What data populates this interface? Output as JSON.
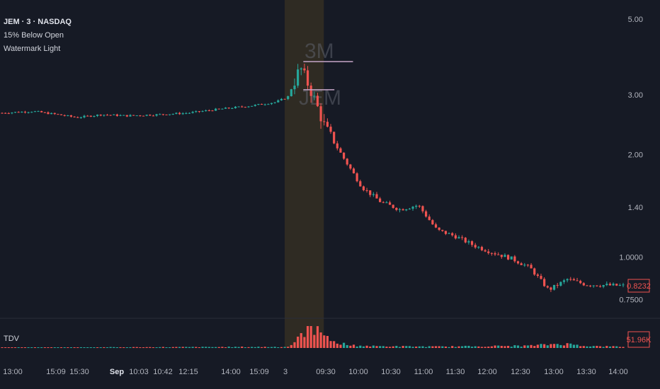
{
  "header": {
    "symbol": "JEM · 3 · NASDAQ",
    "indicators": [
      "15% Below Open",
      "Watermark Light"
    ]
  },
  "watermark": {
    "line1": "3M",
    "line2": "JEM"
  },
  "volume_pane": {
    "label": "TDV",
    "last_value_label": "51.96K"
  },
  "price_axis": {
    "last_price_label": "0.8232"
  },
  "colors": {
    "background": "#161a25",
    "up": "#26a69a",
    "down": "#ef5350",
    "highlight": "#8a6b20",
    "level_line": "#c6a6c8",
    "axis_text": "#b2b5be"
  },
  "chart_data": {
    "type": "candlestick",
    "scale": "log",
    "y_ticks": [
      "5.00",
      "3.00",
      "2.00",
      "1.40",
      "1.0000",
      "0.7500"
    ],
    "y_tick_values": [
      5.0,
      3.0,
      2.0,
      1.4,
      1.0,
      0.75
    ],
    "last_price": 0.8232,
    "x_ticks": [
      {
        "label": "13:00",
        "bold": false
      },
      {
        "label": "15:09",
        "bold": false
      },
      {
        "label": "15:30",
        "bold": false
      },
      {
        "label": "Sep",
        "bold": true
      },
      {
        "label": "10:03",
        "bold": false
      },
      {
        "label": "10:42",
        "bold": false
      },
      {
        "label": "12:15",
        "bold": false
      },
      {
        "label": "14:00",
        "bold": false
      },
      {
        "label": "15:09",
        "bold": false
      },
      {
        "label": "3",
        "bold": false
      },
      {
        "label": "09:30",
        "bold": false
      },
      {
        "label": "10:00",
        "bold": false
      },
      {
        "label": "10:30",
        "bold": false
      },
      {
        "label": "11:00",
        "bold": false
      },
      {
        "label": "11:30",
        "bold": false
      },
      {
        "label": "12:00",
        "bold": false
      },
      {
        "label": "12:30",
        "bold": false
      },
      {
        "label": "13:00",
        "bold": false
      },
      {
        "label": "13:30",
        "bold": false
      },
      {
        "label": "14:00",
        "bold": false
      }
    ],
    "price_path": [
      [
        0,
        2.65
      ],
      [
        0.05,
        2.68
      ],
      [
        0.09,
        2.62
      ],
      [
        0.12,
        2.57
      ],
      [
        0.16,
        2.62
      ],
      [
        0.2,
        2.6
      ],
      [
        0.25,
        2.62
      ],
      [
        0.3,
        2.65
      ],
      [
        0.35,
        2.72
      ],
      [
        0.4,
        2.78
      ],
      [
        0.44,
        2.85
      ],
      [
        0.46,
        2.95
      ],
      [
        0.48,
        3.6
      ],
      [
        0.49,
        3.3
      ],
      [
        0.5,
        3.0
      ],
      [
        0.52,
        2.4
      ],
      [
        0.55,
        1.95
      ],
      [
        0.58,
        1.6
      ],
      [
        0.61,
        1.45
      ],
      [
        0.64,
        1.38
      ],
      [
        0.67,
        1.42
      ],
      [
        0.7,
        1.2
      ],
      [
        0.73,
        1.15
      ],
      [
        0.76,
        1.08
      ],
      [
        0.79,
        1.03
      ],
      [
        0.82,
        0.99
      ],
      [
        0.85,
        0.93
      ],
      [
        0.88,
        0.8
      ],
      [
        0.91,
        0.86
      ],
      [
        0.94,
        0.83
      ],
      [
        1.0,
        0.8232
      ]
    ],
    "levels": [
      {
        "price": 3.75,
        "from": 0.485,
        "to": 0.565
      },
      {
        "price": 3.1,
        "from": 0.485,
        "to": 0.535
      }
    ],
    "volume_profile": [
      [
        0,
        0.02
      ],
      [
        0.46,
        0.05
      ],
      [
        0.48,
        0.45
      ],
      [
        0.49,
        0.85
      ],
      [
        0.5,
        1.0
      ],
      [
        0.51,
        0.7
      ],
      [
        0.52,
        0.45
      ],
      [
        0.54,
        0.25
      ],
      [
        0.56,
        0.12
      ],
      [
        0.6,
        0.08
      ],
      [
        0.7,
        0.06
      ],
      [
        0.85,
        0.1
      ],
      [
        0.9,
        0.2
      ],
      [
        0.95,
        0.08
      ],
      [
        1.0,
        0.06
      ]
    ]
  }
}
